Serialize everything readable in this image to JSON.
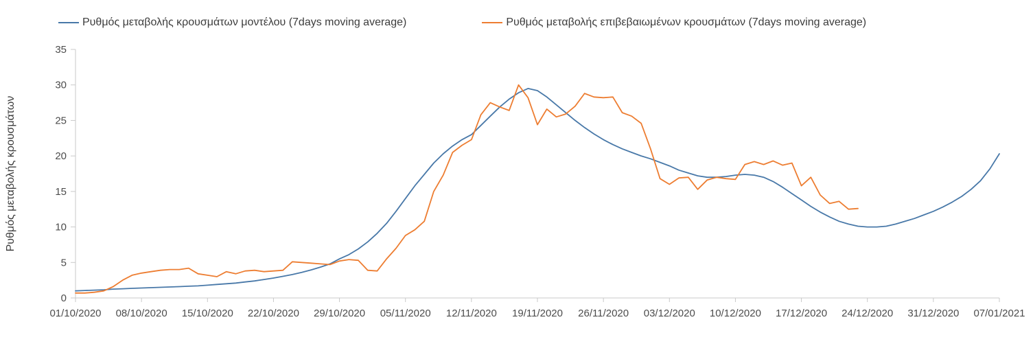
{
  "chart_data": {
    "type": "line",
    "title": "",
    "xlabel": "",
    "ylabel": "Ρυθμός μεταβολής κρουσμάτων",
    "ylim": [
      0,
      35
    ],
    "y_ticks": [
      0,
      5,
      10,
      15,
      20,
      25,
      30,
      35
    ],
    "x_tick_labels": [
      "01/10/2020",
      "08/10/2020",
      "15/10/2020",
      "22/10/2020",
      "29/10/2020",
      "05/11/2020",
      "12/11/2020",
      "19/11/2020",
      "26/11/2020",
      "03/12/2020",
      "10/12/2020",
      "17/12/2020",
      "24/12/2020",
      "31/12/2020",
      "07/01/2021"
    ],
    "x_tick_interval_days": 7,
    "total_days": 99,
    "grid": false,
    "legend_position": "top",
    "colors": {
      "axis": "#c9c9c9",
      "tick_text": "#4c4c4c"
    },
    "series": [
      {
        "name": "Ρυθμός μεταβολής κρουσμάτων μοντέλου (7days moving average)",
        "color": "#4878a8",
        "start_day": 0,
        "values": [
          1.0,
          1.05,
          1.1,
          1.15,
          1.25,
          1.3,
          1.35,
          1.4,
          1.45,
          1.5,
          1.55,
          1.6,
          1.65,
          1.7,
          1.8,
          1.9,
          2.0,
          2.1,
          2.25,
          2.4,
          2.6,
          2.8,
          3.05,
          3.3,
          3.6,
          3.95,
          4.35,
          4.8,
          5.5,
          6.1,
          6.9,
          7.9,
          9.1,
          10.5,
          12.2,
          14.0,
          15.8,
          17.4,
          19.0,
          20.3,
          21.4,
          22.3,
          23.0,
          24.3,
          25.6,
          26.9,
          28.0,
          28.9,
          29.5,
          29.2,
          28.3,
          27.2,
          26.1,
          25.0,
          24.0,
          23.1,
          22.3,
          21.6,
          21.0,
          20.5,
          20.0,
          19.6,
          19.1,
          18.6,
          18.0,
          17.6,
          17.2,
          17.0,
          17.0,
          17.1,
          17.3,
          17.4,
          17.3,
          17.0,
          16.4,
          15.6,
          14.7,
          13.8,
          12.9,
          12.1,
          11.4,
          10.8,
          10.4,
          10.1,
          10.0,
          10.0,
          10.1,
          10.4,
          10.8,
          11.2,
          11.7,
          12.2,
          12.8,
          13.5,
          14.3,
          15.3,
          16.5,
          18.2,
          20.3
        ]
      },
      {
        "name": "Ρυθμός μεταβολής επιβεβαιωμένων κρουσμάτων (7days moving average)",
        "color": "#ed7d31",
        "start_day": 0,
        "values": [
          0.7,
          0.7,
          0.8,
          1.0,
          1.6,
          2.5,
          3.2,
          3.5,
          3.7,
          3.9,
          4.0,
          4.0,
          4.2,
          3.4,
          3.2,
          3.0,
          3.7,
          3.4,
          3.8,
          3.9,
          3.7,
          3.8,
          3.9,
          5.1,
          5.0,
          4.9,
          4.8,
          4.7,
          5.2,
          5.4,
          5.3,
          3.9,
          3.8,
          5.5,
          7.0,
          8.8,
          9.6,
          10.8,
          15.0,
          17.3,
          20.5,
          21.5,
          22.3,
          25.8,
          27.5,
          26.9,
          26.4,
          30.0,
          28.2,
          24.4,
          26.6,
          25.5,
          25.9,
          27.0,
          28.8,
          28.3,
          28.2,
          28.3,
          26.1,
          25.6,
          24.6,
          21.0,
          16.8,
          16.0,
          16.9,
          17.0,
          15.3,
          16.6,
          17.0,
          16.8,
          16.7,
          18.8,
          19.2,
          18.8,
          19.3,
          18.7,
          19.0,
          15.8,
          17.0,
          14.5,
          13.3,
          13.6,
          12.5,
          12.6
        ]
      }
    ]
  }
}
